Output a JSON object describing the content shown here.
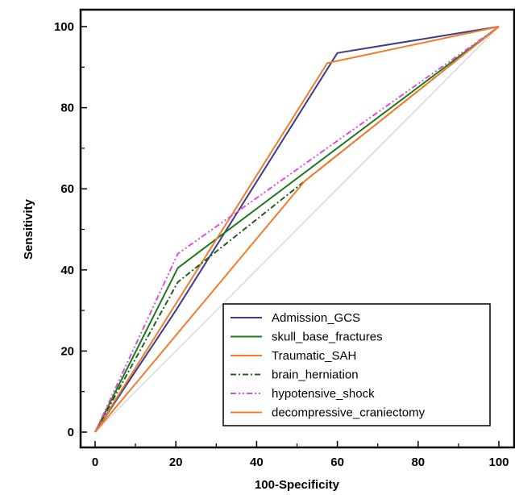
{
  "chart_data": {
    "type": "line",
    "title": "",
    "xlabel": "100-Specificity",
    "ylabel": "Sensitivity",
    "xlim": [
      0,
      100
    ],
    "ylim": [
      0,
      100
    ],
    "xticks": [
      0,
      20,
      40,
      60,
      80,
      100
    ],
    "yticks": [
      0,
      20,
      40,
      60,
      80,
      100
    ],
    "grid": false,
    "legend_position": "bottom-right",
    "reference_line": {
      "x": [
        0,
        100
      ],
      "y": [
        0,
        100
      ],
      "color": "#d9d9d9"
    },
    "series": [
      {
        "name": "Admission_GCS",
        "color": "#3b3b8c",
        "dash": "solid",
        "x": [
          0,
          20,
          60,
          100
        ],
        "y": [
          0,
          30,
          93.5,
          100
        ]
      },
      {
        "name": "skull_base_fractures",
        "color": "#1b7a1b",
        "dash": "solid",
        "x": [
          0,
          20.5,
          100
        ],
        "y": [
          0,
          40.5,
          100
        ]
      },
      {
        "name": "Traumatic_SAH",
        "color": "#f07d2c",
        "dash": "solid",
        "x": [
          0,
          57.5,
          100
        ],
        "y": [
          0,
          91,
          100
        ]
      },
      {
        "name": "brain_herniation",
        "color": "#1f5f1f",
        "dash": "dashdot",
        "x": [
          0,
          20.5,
          100
        ],
        "y": [
          0,
          37,
          100
        ]
      },
      {
        "name": "hypotensive_shock",
        "color": "#e04ae0",
        "dash": "dashdotdot",
        "x": [
          0,
          20.5,
          100
        ],
        "y": [
          0,
          44,
          100
        ]
      },
      {
        "name": "decompressive_craniectomy",
        "color": "#f07d2c",
        "dash": "solid",
        "x": [
          0,
          52,
          100
        ],
        "y": [
          0,
          62,
          100
        ]
      }
    ]
  }
}
